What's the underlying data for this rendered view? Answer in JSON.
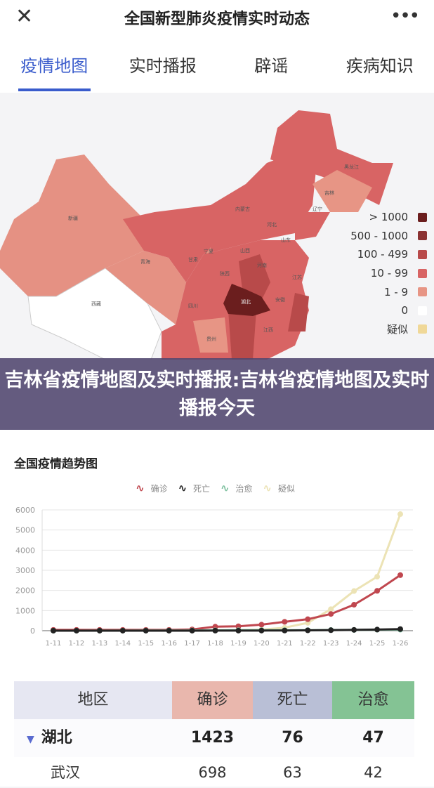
{
  "header": {
    "title": "全国新型肺炎疫情实时动态",
    "close_icon": "close-icon",
    "more_icon": "more-icon"
  },
  "tabs": [
    {
      "label": "疫情地图",
      "active": true
    },
    {
      "label": "实时播报"
    },
    {
      "label": "辟谣"
    },
    {
      "label": "疾病知识"
    }
  ],
  "map": {
    "legend": [
      {
        "label": "> 1000",
        "color": "#6b1e1e"
      },
      {
        "label": "500 - 1000",
        "color": "#8a3232"
      },
      {
        "label": "100 - 499",
        "color": "#b84a4a"
      },
      {
        "label": "10 - 99",
        "color": "#d86464"
      },
      {
        "label": "1 - 9",
        "color": "#e79585"
      },
      {
        "label": "0",
        "color": "#ffffff"
      },
      {
        "label": "疑似",
        "color": "#f0d898"
      }
    ],
    "labels": {
      "xinjiang": "新疆",
      "qinghai": "青海",
      "xizang": "西藏",
      "neimenggu": "内蒙古",
      "heilongjiang": "黑龙江",
      "jilin": "吉林",
      "liaoning": "辽宁",
      "hubei": "湖北",
      "sichuan": "四川",
      "guizhou": "贵州",
      "jiangxi": "江西",
      "gansu": "甘肃",
      "ningxia": "宁夏",
      "shaanxi": "陕西",
      "henan": "河南",
      "anhui": "安徽",
      "jiangsu": "江苏",
      "shandong": "山东",
      "shanxi": "山西",
      "hebei": "河北"
    }
  },
  "banner": {
    "text": "吉林省疫情地图及实时播报:吉林省疫情地图及实时播报今天"
  },
  "chart_data": {
    "type": "line",
    "title": "全国疫情趋势图",
    "categories": [
      "1-11",
      "1-12",
      "1-13",
      "1-14",
      "1-15",
      "1-16",
      "1-17",
      "1-18",
      "1-19",
      "1-20",
      "1-21",
      "1-22",
      "1-23",
      "1-24",
      "1-25",
      "1-26"
    ],
    "ylim": [
      0,
      6000
    ],
    "yticks": [
      "0",
      "1000",
      "2000",
      "3000",
      "4000",
      "5000",
      "6000"
    ],
    "grid": true,
    "legend_position": "top",
    "series": [
      {
        "name": "确诊",
        "color": "#c0474f",
        "values": [
          41,
          41,
          41,
          41,
          41,
          41,
          62,
          200,
          220,
          300,
          440,
          570,
          830,
          1290,
          1980,
          2760
        ]
      },
      {
        "name": "死亡",
        "color": "#222222",
        "values": [
          1,
          1,
          1,
          1,
          2,
          2,
          2,
          3,
          3,
          6,
          9,
          17,
          25,
          41,
          56,
          80
        ]
      },
      {
        "name": "治愈",
        "color": "#7fc1a0",
        "values": [
          2,
          2,
          3,
          5,
          7,
          9,
          12,
          17,
          25,
          25,
          28,
          28,
          34,
          38,
          49,
          51
        ]
      },
      {
        "name": "疑似",
        "color": "#ece3b5",
        "values": [
          null,
          null,
          null,
          null,
          null,
          null,
          null,
          null,
          30,
          50,
          150,
          390,
          1070,
          1970,
          2680,
          5790
        ]
      }
    ]
  },
  "table": {
    "headers": [
      "地区",
      "确诊",
      "死亡",
      "治愈"
    ],
    "header_colors": [
      "#e6e7f2",
      "#e9b7ad",
      "#b9bfd6",
      "#84c394"
    ],
    "rows": [
      {
        "region": "湖北",
        "confirmed": "1423",
        "dead": "76",
        "cured": "47",
        "expanded": true
      },
      {
        "region": "武汉",
        "confirmed": "698",
        "dead": "63",
        "cured": "42"
      }
    ]
  }
}
